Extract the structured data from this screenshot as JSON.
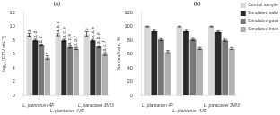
{
  "chart_data": [
    {
      "type": "bar",
      "title": "(a)",
      "ylabel": "log₁₀ [CFU mL⁻¹]",
      "categories": [
        "L. plantarum 4F",
        "L. plantarum 4JC",
        "L. paracasei 3MI3"
      ],
      "series": [
        {
          "color": "#d8d8d8",
          "values": [
            8.8,
            8.8,
            8.9
          ],
          "errors": [
            0.2,
            0.15,
            0.35
          ],
          "annotations": [
            "a",
            "a, b, c",
            "a"
          ]
        },
        {
          "color": "#2a2a2a",
          "values": [
            8.0,
            8.0,
            8.0
          ],
          "errors": [
            0.15,
            0.15,
            0.15
          ],
          "annotations": [
            "b, d",
            "a, c, e",
            "a, b, e"
          ]
        },
        {
          "color": "#787878",
          "values": [
            7.3,
            7.0,
            7.1
          ],
          "errors": [
            0.15,
            0.15,
            0.2
          ],
          "annotations": [
            "b, d",
            "a, c, e",
            "a, b, e"
          ]
        },
        {
          "color": "#b0b0b0",
          "values": [
            5.5,
            6.8,
            6.0
          ],
          "errors": [
            0.25,
            0.15,
            0.2
          ],
          "annotations": [
            "c",
            "a, d, f",
            "a, d, f"
          ]
        }
      ],
      "ylim": [
        0,
        12
      ],
      "yticks": [
        0,
        2,
        4,
        6,
        8,
        10,
        12
      ],
      "grid": false
    },
    {
      "type": "bar",
      "title": "(b)",
      "ylabel": "Survival rate, %",
      "categories": [
        "L. plantarum 4F",
        "L. plantarum 4JC",
        "L. paracasei 3MI3"
      ],
      "series": [
        {
          "name": "Control sample (PBS)",
          "color": "#d8d8d8",
          "values": [
            100,
            100,
            100
          ],
          "errors": [
            0.5,
            0.5,
            0.5
          ]
        },
        {
          "name": "Simulated saliva juice",
          "color": "#2a2a2a",
          "values": [
            93,
            93,
            92
          ],
          "errors": [
            1.5,
            1.5,
            1.5
          ]
        },
        {
          "name": "Simulated gastric juice",
          "color": "#787878",
          "values": [
            81,
            81,
            80
          ],
          "errors": [
            1.5,
            1.5,
            1.5
          ]
        },
        {
          "name": "Simulated intestine juice",
          "color": "#b0b0b0",
          "values": [
            63,
            68,
            68
          ],
          "errors": [
            2.0,
            1.5,
            1.5
          ]
        }
      ],
      "ylim": [
        0,
        120
      ],
      "yticks": [
        0,
        20,
        40,
        60,
        80,
        100,
        120
      ],
      "grid": false,
      "legend": "upper right"
    }
  ]
}
